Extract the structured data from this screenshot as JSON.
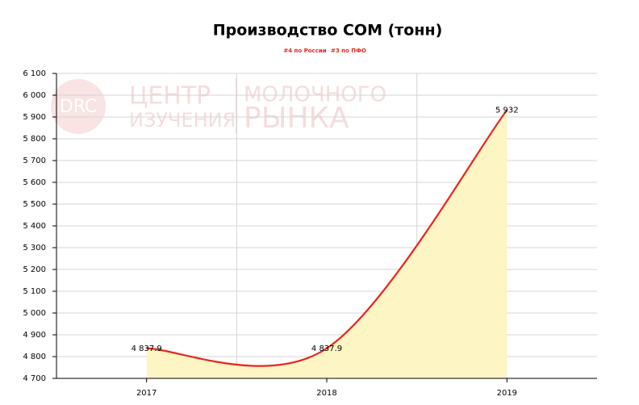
{
  "chart_data": {
    "type": "area",
    "title": "Производство СОМ (тонн)",
    "subtitles": [
      "#4 по России",
      "#3 по ПФО"
    ],
    "watermark": {
      "logo": "DRC",
      "lines": [
        "ЦЕНТР",
        "ИЗУЧЕНИЯ",
        "МОЛОЧНОГО",
        "РЫНКА"
      ]
    },
    "categories": [
      "2017",
      "2018",
      "2019"
    ],
    "values": [
      4837.9,
      4837.9,
      5932
    ],
    "value_labels": [
      "4 837.9",
      "4 837.9",
      "5 932"
    ],
    "color": "#e8261b",
    "fill_color": "#fdf5c4",
    "ylim": [
      4700,
      6100
    ],
    "yticks": [
      {
        "value": 4700,
        "label": "4 700"
      },
      {
        "value": 4800,
        "label": "4 800"
      },
      {
        "value": 4900,
        "label": "4 900"
      },
      {
        "value": 5000,
        "label": "5 000"
      },
      {
        "value": 5100,
        "label": "5 100"
      },
      {
        "value": 5200,
        "label": "5 200"
      },
      {
        "value": 5300,
        "label": "5 300"
      },
      {
        "value": 5400,
        "label": "5 400"
      },
      {
        "value": 5500,
        "label": "5 500"
      },
      {
        "value": 5600,
        "label": "5 600"
      },
      {
        "value": 5700,
        "label": "5 700"
      },
      {
        "value": 5800,
        "label": "5 800"
      },
      {
        "value": 5900,
        "label": "5 900"
      },
      {
        "value": 6000,
        "label": "6 000"
      },
      {
        "value": 6100,
        "label": "6 100"
      }
    ],
    "grid": true
  }
}
